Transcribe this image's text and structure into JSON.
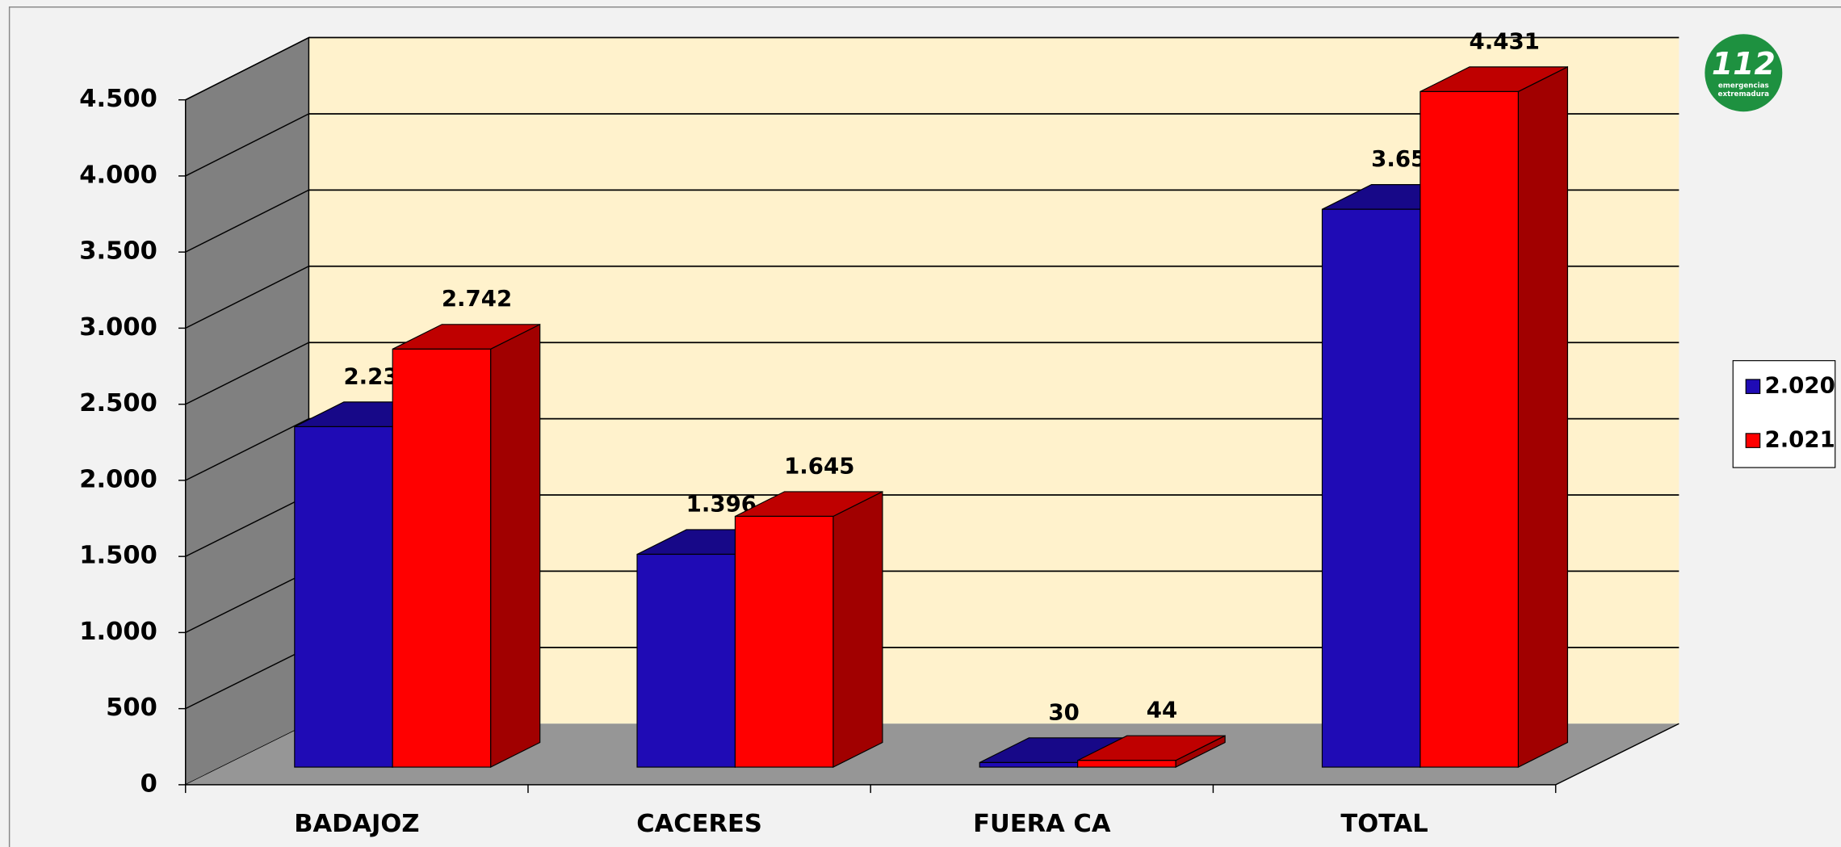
{
  "chart_data": {
    "type": "bar3d",
    "categories": [
      "BADAJOZ",
      "CACERES",
      "FUERA CA",
      "TOTAL"
    ],
    "series": [
      {
        "name": "2.020",
        "color": "#1f0bb5",
        "values": [
          2233,
          1396,
          30,
          3659
        ],
        "value_labels": [
          "2.233",
          "1.396",
          "30",
          "3.659"
        ]
      },
      {
        "name": "2.021",
        "color": "#ff0000",
        "values": [
          2742,
          1645,
          44,
          4431
        ],
        "value_labels": [
          "2.742",
          "1.645",
          "44",
          "4.431"
        ]
      }
    ],
    "ylim": [
      0,
      4500
    ],
    "yticks": [
      0,
      500,
      {
        "value": 1000,
        "label": "1.000"
      },
      {
        "value": 1500,
        "label": "1.500"
      },
      {
        "value": 2000,
        "label": "2.000"
      },
      {
        "value": 2500,
        "label": "2.500"
      },
      {
        "value": 3000,
        "label": "3.000"
      },
      {
        "value": 3500,
        "label": "3.500"
      },
      {
        "value": 4000,
        "label": "4.000"
      },
      {
        "value": 4500,
        "label": "4.500"
      }
    ],
    "grid": true,
    "legend": "right"
  },
  "logo": {
    "number": "112",
    "lines": [
      "emergencias",
      "extremadura"
    ]
  }
}
